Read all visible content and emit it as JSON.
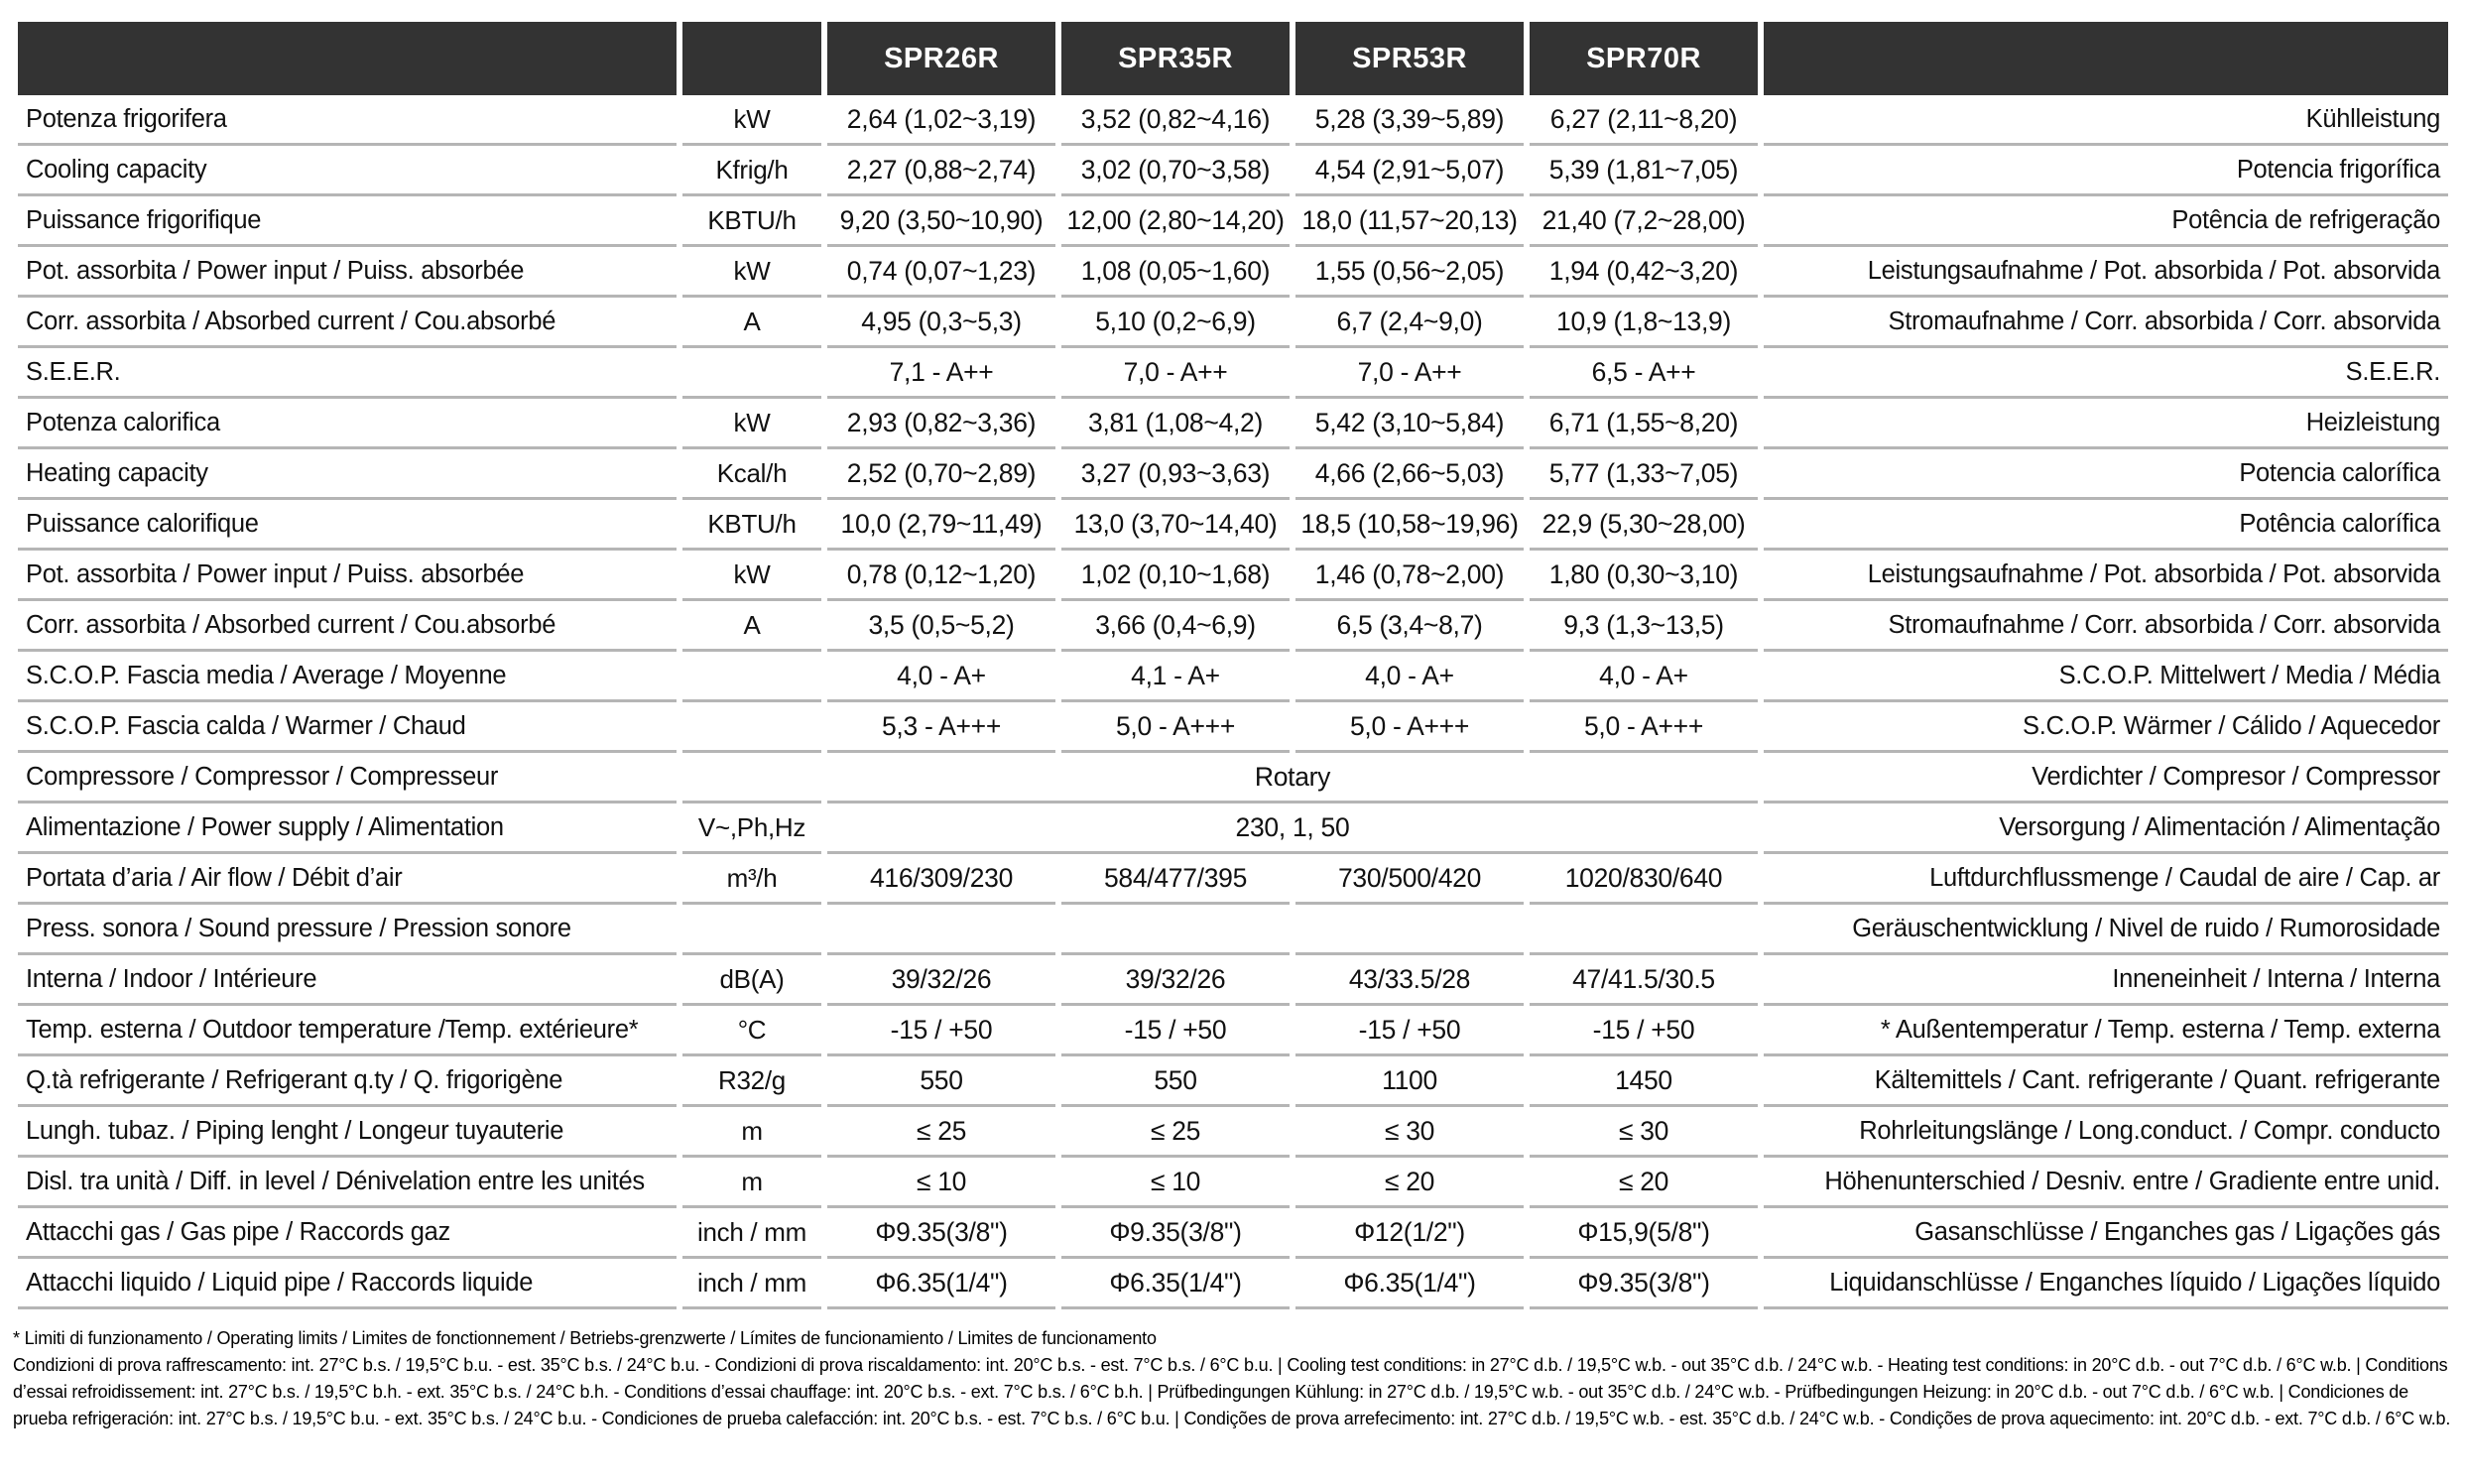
{
  "header": {
    "models": [
      "SPR26R",
      "SPR35R",
      "SPR53R",
      "SPR70R"
    ]
  },
  "table": {
    "rows": [
      {
        "label": "Potenza frigorifera",
        "unit": "kW",
        "values": [
          "2,64 (1,02~3,19)",
          "3,52 (0,82~4,16)",
          "5,28 (3,39~5,89)",
          "6,27 (2,11~8,20)"
        ],
        "label_right": "Kühlleistung"
      },
      {
        "label": "Cooling capacity",
        "unit": "Kfrig/h",
        "values": [
          "2,27 (0,88~2,74)",
          "3,02 (0,70~3,58)",
          "4,54 (2,91~5,07)",
          "5,39 (1,81~7,05)"
        ],
        "label_right": "Potencia frigorífica"
      },
      {
        "label": "Puissance frigorifique",
        "unit": "KBTU/h",
        "values": [
          "9,20 (3,50~10,90)",
          "12,00 (2,80~14,20)",
          "18,0 (11,57~20,13)",
          "21,40 (7,2~28,00)"
        ],
        "label_right": "Potência de refrigeração"
      },
      {
        "label": "Pot. assorbita / Power input / Puiss. absorbée",
        "unit": "kW",
        "values": [
          "0,74 (0,07~1,23)",
          "1,08 (0,05~1,60)",
          "1,55 (0,56~2,05)",
          "1,94 (0,42~3,20)"
        ],
        "label_right": "Leistungsaufnahme / Pot. absorbida / Pot. absorvida"
      },
      {
        "label": "Corr. assorbita / Absorbed current / Cou.absorbé",
        "unit": "A",
        "values": [
          "4,95 (0,3~5,3)",
          "5,10 (0,2~6,9)",
          "6,7 (2,4~9,0)",
          "10,9 (1,8~13,9)"
        ],
        "label_right": "Stromaufnahme / Corr. absorbida / Corr. absorvida"
      },
      {
        "label": "S.E.E.R.",
        "unit": "",
        "values": [
          "7,1 - A++",
          "7,0 - A++",
          "7,0 - A++",
          "6,5 - A++"
        ],
        "label_right": "S.E.E.R."
      },
      {
        "label": "Potenza calorifica",
        "unit": "kW",
        "values": [
          "2,93 (0,82~3,36)",
          "3,81 (1,08~4,2)",
          "5,42 (3,10~5,84)",
          "6,71 (1,55~8,20)"
        ],
        "label_right": "Heizleistung"
      },
      {
        "label": "Heating capacity",
        "unit": "Kcal/h",
        "values": [
          "2,52 (0,70~2,89)",
          "3,27 (0,93~3,63)",
          "4,66 (2,66~5,03)",
          "5,77 (1,33~7,05)"
        ],
        "label_right": "Potencia calorífica"
      },
      {
        "label": "Puissance calorifique",
        "unit": "KBTU/h",
        "values": [
          "10,0 (2,79~11,49)",
          "13,0 (3,70~14,40)",
          "18,5 (10,58~19,96)",
          "22,9 (5,30~28,00)"
        ],
        "label_right": "Potência calorífica"
      },
      {
        "label": "Pot. assorbita / Power input / Puiss. absorbée",
        "unit": "kW",
        "values": [
          "0,78 (0,12~1,20)",
          "1,02 (0,10~1,68)",
          "1,46 (0,78~2,00)",
          "1,80 (0,30~3,10)"
        ],
        "label_right": "Leistungsaufnahme / Pot. absorbida / Pot. absorvida"
      },
      {
        "label": "Corr. assorbita / Absorbed current / Cou.absorbé",
        "unit": "A",
        "values": [
          "3,5 (0,5~5,2)",
          "3,66 (0,4~6,9)",
          "6,5 (3,4~8,7)",
          "9,3 (1,3~13,5)"
        ],
        "label_right": "Stromaufnahme / Corr. absorbida / Corr. absorvida"
      },
      {
        "label": "S.C.O.P. Fascia media / Average / Moyenne",
        "unit": "",
        "values": [
          "4,0 - A+",
          "4,1 - A+",
          "4,0 - A+",
          "4,0 - A+"
        ],
        "label_right": "S.C.O.P.  Mittelwert / Media / Média"
      },
      {
        "label": "S.C.O.P. Fascia calda / Warmer / Chaud",
        "unit": "",
        "values": [
          "5,3 - A+++",
          "5,0 - A+++",
          "5,0 - A+++",
          "5,0 - A+++"
        ],
        "label_right": "S.C.O.P.  Wärmer / Cálido / Aquecedor"
      },
      {
        "label": "Compressore / Compressor / Compresseur",
        "unit": "",
        "span_value": "Rotary",
        "label_right": "Verdichter / Compresor / Compressor"
      },
      {
        "label": "Alimentazione / Power supply / Alimentation",
        "unit": "V~,Ph,Hz",
        "span_value": "230, 1, 50",
        "label_right": "Versorgung / Alimentación / Alimentação"
      },
      {
        "label": "Portata d’aria / Air flow / Débit d’air",
        "unit": "m³/h",
        "values": [
          "416/309/230",
          "584/477/395",
          "730/500/420",
          "1020/830/640"
        ],
        "label_right": "Luftdurchflussmenge / Caudal de aire / Cap. ar"
      },
      {
        "label": "Press. sonora / Sound pressure / Pression sonore",
        "unit": "",
        "values": [
          "",
          "",
          "",
          ""
        ],
        "label_right": "Geräuschentwicklung / Nivel de ruido / Rumorosidade"
      },
      {
        "label": "Interna / Indoor / Intérieure",
        "unit": "dB(A)",
        "values": [
          "39/32/26",
          "39/32/26",
          "43/33.5/28",
          "47/41.5/30.5"
        ],
        "label_right": "Inneneinheit / Interna / Interna"
      },
      {
        "label": "Temp. esterna / Outdoor temperature /Temp. extérieure*",
        "unit": "°C",
        "values": [
          "-15 / +50",
          "-15 / +50",
          "-15 / +50",
          "-15 / +50"
        ],
        "label_right": "* Außentemperatur / Temp. esterna / Temp. externa"
      },
      {
        "label": "Q.tà refrigerante / Refrigerant q.ty / Q. frigorigène",
        "unit": "R32/g",
        "values": [
          "550",
          "550",
          "1100",
          "1450"
        ],
        "label_right": "Kältemittels / Cant. refrigerante / Quant. refrigerante"
      },
      {
        "label": "Lungh. tubaz. / Piping lenght / Longeur tuyauterie",
        "unit": "m",
        "values": [
          "≤ 25",
          "≤ 25",
          "≤ 30",
          "≤ 30"
        ],
        "label_right": "Rohrleitungslänge / Long.conduct. / Compr. conducto"
      },
      {
        "label": "Disl. tra unità / Diff. in level / Dénivelation entre les unités",
        "unit": "m",
        "values": [
          "≤ 10",
          "≤ 10",
          "≤ 20",
          "≤ 20"
        ],
        "label_right": "Höhenunterschied / Desniv. entre / Gradiente entre unid."
      },
      {
        "label": "Attacchi gas / Gas pipe / Raccords gaz",
        "unit": "inch / mm",
        "values": [
          "Φ9.35(3/8\")",
          "Φ9.35(3/8\")",
          "Φ12(1/2\")",
          "Φ15,9(5/8\")"
        ],
        "label_right": "Gasanschlüsse / Enganches gas / Ligações gás"
      },
      {
        "label": "Attacchi liquido / Liquid pipe / Raccords liquide",
        "unit": "inch / mm",
        "values": [
          "Φ6.35(1/4\")",
          "Φ6.35(1/4\")",
          "Φ6.35(1/4\")",
          "Φ9.35(3/8\")"
        ],
        "label_right": "Liquidanschlüsse / Enganches líquido / Ligações líquido"
      }
    ]
  },
  "footnotes": {
    "limits": "* Limiti di funzionamento / Operating limits / Limites de fonctionnement / Betriebs-grenzwerte / Límites de funcionamiento / Limites de funcionamento",
    "conditions": "Condizioni di prova raffrescamento: int. 27°C b.s. / 19,5°C b.u. - est. 35°C b.s. / 24°C b.u. - Condizioni di prova riscaldamento: int. 20°C b.s. - est. 7°C b.s. / 6°C b.u.   |   Cooling test conditions: in 27°C d.b. / 19,5°C w.b. - out 35°C d.b. / 24°C w.b. - Heating test conditions: in 20°C d.b. - out 7°C d.b. / 6°C w.b.   |   Conditions d’essai refroidissement: int. 27°C b.s. / 19,5°C b.h. - ext. 35°C b.s. / 24°C b.h. - Conditions d’essai chauffage: int. 20°C b.s. - ext. 7°C b.s. / 6°C b.h.   |   Prüfbedingungen Kühlung: in 27°C d.b. / 19,5°C w.b. - out 35°C d.b. / 24°C w.b. - Prüfbedingungen Heizung: in 20°C d.b. - out 7°C d.b. / 6°C w.b.   |   Condiciones de prueba refrigeración: int. 27°C b.s. / 19,5°C b.u. - ext. 35°C b.s. / 24°C b.u. - Condiciones de prueba calefacción: int. 20°C b.s. - est. 7°C b.s. / 6°C b.u.   |   Condições de prova arrefecimento: int. 27°C d.b. / 19,5°C w.b. - est. 35°C d.b. / 24°C w.b. - Condições de prova aquecimento: int. 20°C d.b. - ext. 7°C d.b. / 6°C w.b."
  },
  "colors": {
    "header_bg": "#333333",
    "header_text": "#ffffff",
    "divider": "#b5b5b5",
    "text": "#111111"
  }
}
